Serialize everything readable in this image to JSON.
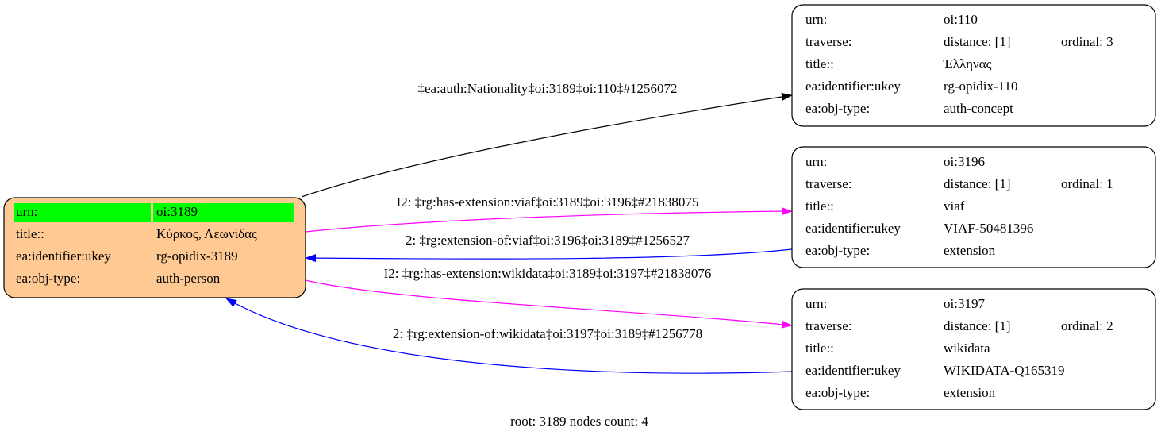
{
  "nodes": [
    {
      "rows": [
        {
          "label": "urn:",
          "value": "oi:3189"
        },
        {
          "label": "title::",
          "value": "Κύρκος, Λεωνίδας"
        },
        {
          "label": "ea:identifier:ukey",
          "value": "rg-opidix-3189"
        },
        {
          "label": "ea:obj-type:",
          "value": "auth-person"
        }
      ]
    },
    {
      "rows": [
        {
          "label": "urn:",
          "value": "oi:110"
        },
        {
          "label": "traverse:",
          "value": "distance: [1]",
          "extra": "ordinal: 3"
        },
        {
          "label": "title::",
          "value": "Έλληνας"
        },
        {
          "label": "ea:identifier:ukey",
          "value": "rg-opidix-110"
        },
        {
          "label": "ea:obj-type:",
          "value": "auth-concept"
        }
      ]
    },
    {
      "rows": [
        {
          "label": "urn:",
          "value": "oi:3196"
        },
        {
          "label": "traverse:",
          "value": "distance: [1]",
          "extra": "ordinal: 1"
        },
        {
          "label": "title::",
          "value": "viaf"
        },
        {
          "label": "ea:identifier:ukey",
          "value": "VIAF-50481396"
        },
        {
          "label": "ea:obj-type:",
          "value": "extension"
        }
      ]
    },
    {
      "rows": [
        {
          "label": "urn:",
          "value": "oi:3197"
        },
        {
          "label": "traverse:",
          "value": "distance: [1]",
          "extra": "ordinal: 2"
        },
        {
          "label": "title::",
          "value": "wikidata"
        },
        {
          "label": "ea:identifier:ukey",
          "value": "WIKIDATA-Q165319"
        },
        {
          "label": "ea:obj-type:",
          "value": "extension"
        }
      ]
    }
  ],
  "edges": [
    {
      "label": "‡ea:auth:Nationality‡oi:3189‡oi:110‡#1256072"
    },
    {
      "label": "I2: ‡rg:has-extension:viaf‡oi:3189‡oi:3196‡#21838075"
    },
    {
      "label": "2: ‡rg:extension-of:viaf‡oi:3196‡oi:3189‡#1256527"
    },
    {
      "label": "I2: ‡rg:has-extension:wikidata‡oi:3189‡oi:3197‡#21838076"
    },
    {
      "label": "2: ‡rg:extension-of:wikidata‡oi:3197‡oi:3189‡#1256778"
    }
  ],
  "footer": "root: 3189 nodes count: 4"
}
